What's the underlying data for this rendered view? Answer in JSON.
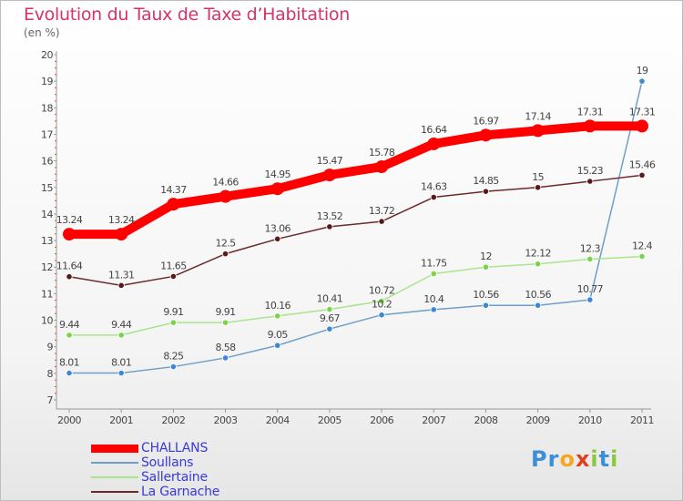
{
  "title": "Evolution du Taux de Taxe d’Habitation",
  "subtitle": "(en %)",
  "chart_data": {
    "type": "line",
    "categories": [
      "2000",
      "2001",
      "2002",
      "2003",
      "2004",
      "2005",
      "2006",
      "2007",
      "2008",
      "2009",
      "2010",
      "2011"
    ],
    "ylim": [
      7,
      20
    ],
    "yticks": [
      "7",
      "8",
      "9",
      "10",
      "11",
      "12",
      "13",
      "14",
      "15",
      "16",
      "17",
      "18",
      "19",
      "20"
    ],
    "grid": false,
    "legend_position": "bottom-left",
    "series": [
      {
        "name": "CHALLANS",
        "color": "#ff0000",
        "marker": "#ff0000",
        "width": 10,
        "values": [
          13.24,
          13.24,
          14.37,
          14.66,
          14.95,
          15.47,
          15.78,
          16.64,
          16.97,
          17.14,
          17.31,
          17.31
        ],
        "labels": [
          "13.24",
          "13.24",
          "14.37",
          "14.66",
          "14.95",
          "15.47",
          "15.78",
          "16.64",
          "16.97",
          "17.14",
          "17.31",
          "17.31"
        ]
      },
      {
        "name": "Soullans",
        "color": "#6f9fc9",
        "marker": "#3b88d4",
        "width": 1.5,
        "values": [
          8.01,
          8.01,
          8.25,
          8.58,
          9.05,
          9.67,
          10.2,
          10.4,
          10.56,
          10.56,
          10.77,
          19
        ],
        "labels": [
          "8.01",
          "8.01",
          "8.25",
          "8.58",
          "9.05",
          "9.67",
          "10.2",
          "10.4",
          "10.56",
          "10.56",
          "10.77",
          "19"
        ]
      },
      {
        "name": "Sallertaine",
        "color": "#a9e58c",
        "marker": "#79d44a",
        "width": 1.5,
        "values": [
          9.44,
          9.44,
          9.91,
          9.91,
          10.16,
          10.41,
          10.72,
          11.75,
          12,
          12.12,
          12.3,
          12.4
        ],
        "labels": [
          "9.44",
          "9.44",
          "9.91",
          "9.91",
          "10.16",
          "10.41",
          "10.72",
          "11.75",
          "12",
          "12.12",
          "12.3",
          "12.4"
        ]
      },
      {
        "name": "La Garnache",
        "color": "#6b2a2a",
        "marker": "#5a1818",
        "width": 1.5,
        "values": [
          11.64,
          11.31,
          11.65,
          12.5,
          13.06,
          13.52,
          13.72,
          14.63,
          14.85,
          15,
          15.23,
          15.46
        ],
        "labels": [
          "11.64",
          "11.31",
          "11.65",
          "12.5",
          "13.06",
          "13.52",
          "13.72",
          "14.63",
          "14.85",
          "15",
          "15.23",
          "15.46"
        ]
      }
    ]
  },
  "legend": [
    {
      "label": "CHALLANS",
      "color": "#ff0000"
    },
    {
      "label": "Soullans",
      "color": "#6f9fc9"
    },
    {
      "label": "Sallertaine",
      "color": "#a9e58c"
    },
    {
      "label": "La Garnache",
      "color": "#6b2a2a"
    }
  ],
  "logo": {
    "text": "Proxiti",
    "letters": [
      "P",
      "r",
      "o",
      "x",
      "i",
      "t",
      "i"
    ],
    "colors": [
      "#3b8fd6",
      "#3b8fd6",
      "#f5a623",
      "#e0401f",
      "#8dc63f",
      "#3b8fd6",
      "#8dc63f"
    ]
  }
}
